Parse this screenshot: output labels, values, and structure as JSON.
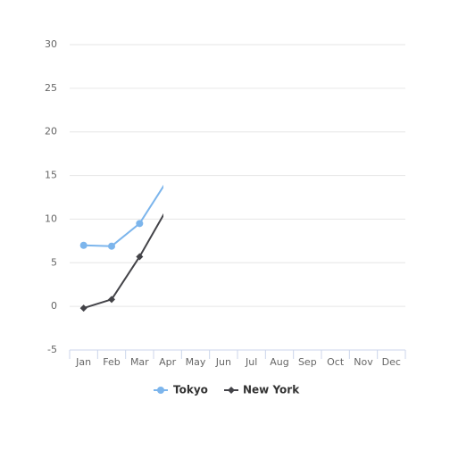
{
  "chart_data": {
    "type": "line",
    "categories": [
      "Jan",
      "Feb",
      "Mar",
      "Apr",
      "May",
      "Jun",
      "Jul",
      "Aug",
      "Sep",
      "Oct",
      "Nov",
      "Dec"
    ],
    "series": [
      {
        "name": "Tokyo",
        "color": "#7cb5ec",
        "marker": "circle",
        "values": [
          7.0,
          6.9,
          9.5,
          14.5,
          null,
          null,
          null,
          null,
          null,
          null,
          null,
          null
        ]
      },
      {
        "name": "New York",
        "color": "#434348",
        "marker": "diamond",
        "values": [
          -0.2,
          0.8,
          5.7,
          11.3,
          null,
          null,
          null,
          null,
          null,
          null,
          null,
          null
        ]
      }
    ],
    "ylim": [
      -5,
      30
    ],
    "yticks": [
      -5,
      0,
      5,
      10,
      15,
      20,
      25,
      30
    ],
    "grid": true,
    "legend": "bottom"
  }
}
